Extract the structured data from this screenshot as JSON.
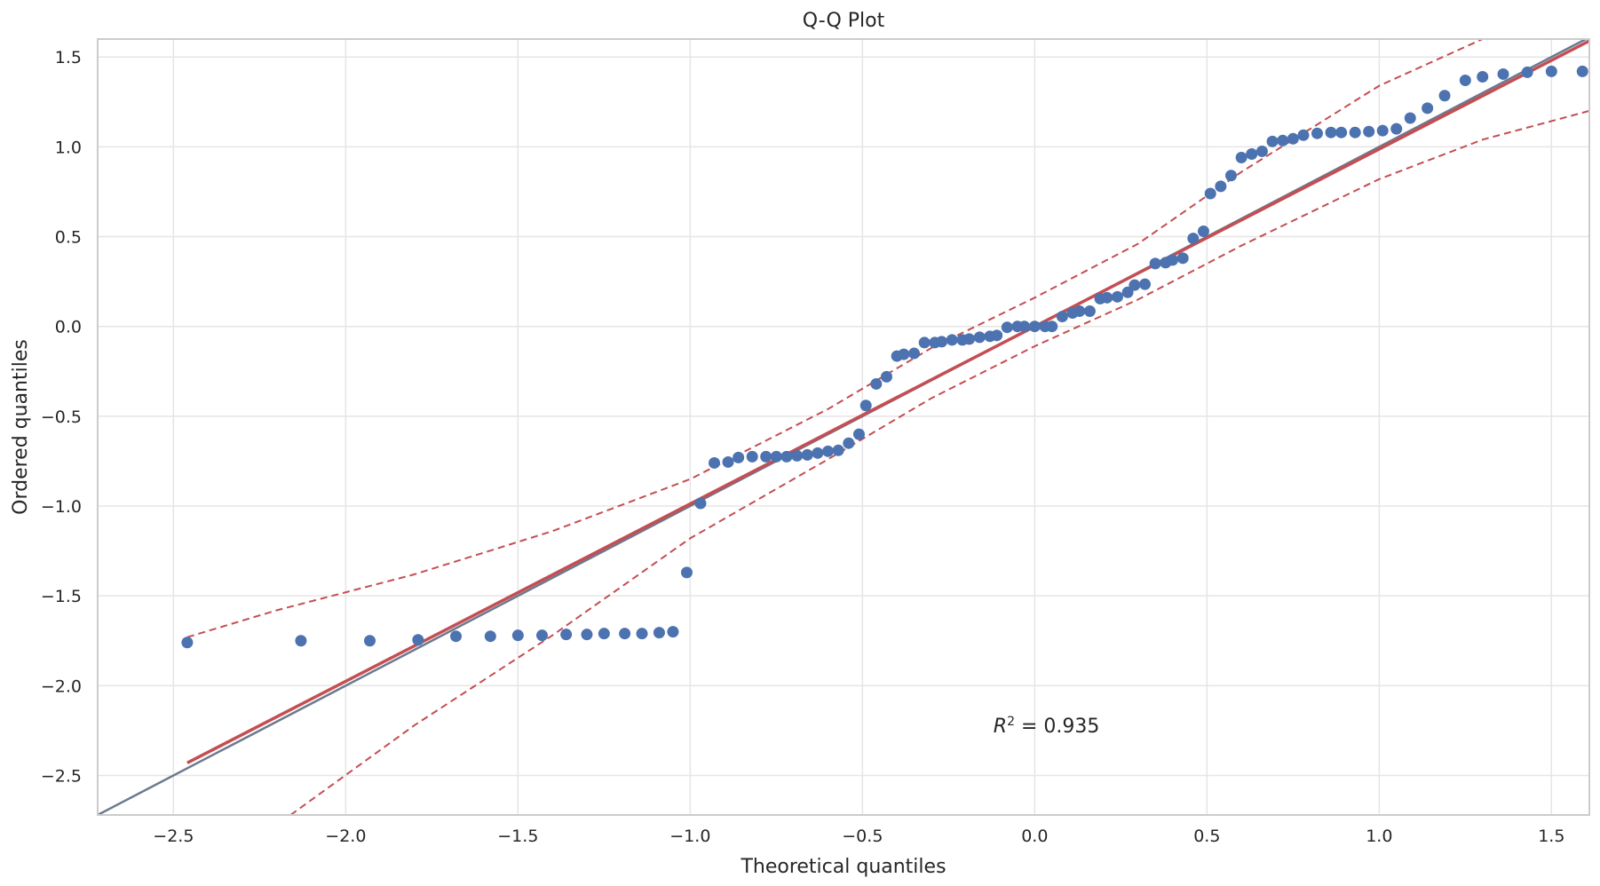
{
  "chart_data": {
    "type": "scatter",
    "title": "Q-Q Plot",
    "xlabel": "Theoretical quantiles",
    "ylabel": "Ordered quantiles",
    "xlim": [
      -2.72,
      1.61
    ],
    "ylim": [
      -2.72,
      1.6
    ],
    "xticks": [
      -2.5,
      -2.0,
      -1.5,
      -1.0,
      -0.5,
      0.0,
      0.5,
      1.0,
      1.5
    ],
    "xtick_labels": [
      "−2.5",
      "−2.0",
      "−1.5",
      "−1.0",
      "−0.5",
      "0.0",
      "0.5",
      "1.0",
      "1.5"
    ],
    "yticks": [
      1.5,
      1.0,
      0.5,
      0.0,
      -0.5,
      -1.0,
      -1.5,
      -2.0,
      -2.5
    ],
    "ytick_labels": [
      "1.5",
      "1.0",
      "0.5",
      "0.0",
      "−0.5",
      "−1.0",
      "−1.5",
      "−2.0",
      "−2.5"
    ],
    "grid": true,
    "annotation": {
      "prefix": "R",
      "superscript": "2",
      "suffix": " = 0.935",
      "x": -0.12,
      "y": -2.26
    },
    "points": [
      [
        -2.46,
        -1.76
      ],
      [
        -2.13,
        -1.75
      ],
      [
        -1.93,
        -1.75
      ],
      [
        -1.79,
        -1.745
      ],
      [
        -1.68,
        -1.725
      ],
      [
        -1.58,
        -1.725
      ],
      [
        -1.5,
        -1.72
      ],
      [
        -1.43,
        -1.72
      ],
      [
        -1.36,
        -1.715
      ],
      [
        -1.3,
        -1.715
      ],
      [
        -1.25,
        -1.71
      ],
      [
        -1.19,
        -1.71
      ],
      [
        -1.14,
        -1.71
      ],
      [
        -1.09,
        -1.705
      ],
      [
        -1.05,
        -1.7
      ],
      [
        -1.01,
        -1.37
      ],
      [
        -0.97,
        -0.985
      ],
      [
        -0.93,
        -0.76
      ],
      [
        -0.89,
        -0.755
      ],
      [
        -0.86,
        -0.73
      ],
      [
        -0.82,
        -0.725
      ],
      [
        -0.78,
        -0.725
      ],
      [
        -0.75,
        -0.725
      ],
      [
        -0.72,
        -0.725
      ],
      [
        -0.69,
        -0.72
      ],
      [
        -0.66,
        -0.715
      ],
      [
        -0.63,
        -0.705
      ],
      [
        -0.6,
        -0.695
      ],
      [
        -0.57,
        -0.69
      ],
      [
        -0.54,
        -0.65
      ],
      [
        -0.51,
        -0.6
      ],
      [
        -0.49,
        -0.44
      ],
      [
        -0.46,
        -0.32
      ],
      [
        -0.43,
        -0.28
      ],
      [
        -0.4,
        -0.165
      ],
      [
        -0.38,
        -0.155
      ],
      [
        -0.35,
        -0.15
      ],
      [
        -0.32,
        -0.09
      ],
      [
        -0.29,
        -0.09
      ],
      [
        -0.27,
        -0.085
      ],
      [
        -0.24,
        -0.075
      ],
      [
        -0.21,
        -0.075
      ],
      [
        -0.19,
        -0.07
      ],
      [
        -0.16,
        -0.06
      ],
      [
        -0.13,
        -0.055
      ],
      [
        -0.11,
        -0.05
      ],
      [
        -0.08,
        -0.005
      ],
      [
        -0.05,
        0.0
      ],
      [
        -0.03,
        0.0
      ],
      [
        0.0,
        0.0
      ],
      [
        0.03,
        0.0
      ],
      [
        0.05,
        0.0
      ],
      [
        0.08,
        0.055
      ],
      [
        0.11,
        0.075
      ],
      [
        0.13,
        0.085
      ],
      [
        0.16,
        0.085
      ],
      [
        0.19,
        0.155
      ],
      [
        0.21,
        0.16
      ],
      [
        0.24,
        0.165
      ],
      [
        0.27,
        0.19
      ],
      [
        0.29,
        0.23
      ],
      [
        0.32,
        0.235
      ],
      [
        0.35,
        0.35
      ],
      [
        0.38,
        0.355
      ],
      [
        0.4,
        0.37
      ],
      [
        0.43,
        0.38
      ],
      [
        0.46,
        0.49
      ],
      [
        0.49,
        0.53
      ],
      [
        0.51,
        0.74
      ],
      [
        0.54,
        0.78
      ],
      [
        0.57,
        0.84
      ],
      [
        0.6,
        0.94
      ],
      [
        0.63,
        0.96
      ],
      [
        0.66,
        0.975
      ],
      [
        0.69,
        1.03
      ],
      [
        0.72,
        1.035
      ],
      [
        0.75,
        1.045
      ],
      [
        0.78,
        1.065
      ],
      [
        0.82,
        1.075
      ],
      [
        0.86,
        1.08
      ],
      [
        0.89,
        1.08
      ],
      [
        0.93,
        1.08
      ],
      [
        0.97,
        1.085
      ],
      [
        1.01,
        1.09
      ],
      [
        1.05,
        1.1
      ],
      [
        1.09,
        1.16
      ],
      [
        1.14,
        1.215
      ],
      [
        1.19,
        1.285
      ],
      [
        1.25,
        1.37
      ],
      [
        1.3,
        1.39
      ],
      [
        1.36,
        1.405
      ],
      [
        1.43,
        1.415
      ],
      [
        1.5,
        1.42
      ],
      [
        1.59,
        1.42
      ]
    ],
    "fit_line": {
      "x": [
        -2.46,
        1.61
      ],
      "y": [
        -2.43,
        1.59
      ],
      "color": "#c44e52"
    },
    "reference_line": {
      "slope": 1,
      "intercept": 0,
      "color": "#6b7a8f"
    },
    "confidence_band": {
      "color": "#c44e52",
      "upper": [
        [
          -2.46,
          -1.73
        ],
        [
          -2.2,
          -1.58
        ],
        [
          -1.8,
          -1.38
        ],
        [
          -1.4,
          -1.14
        ],
        [
          -1.0,
          -0.85
        ],
        [
          -0.6,
          -0.46
        ],
        [
          -0.3,
          -0.12
        ],
        [
          0.0,
          0.16
        ],
        [
          0.3,
          0.46
        ],
        [
          0.6,
          0.86
        ],
        [
          1.0,
          1.34
        ],
        [
          1.3,
          1.6
        ]
      ],
      "lower": [
        [
          -2.16,
          -2.72
        ],
        [
          -1.8,
          -2.22
        ],
        [
          -1.4,
          -1.72
        ],
        [
          -1.0,
          -1.18
        ],
        [
          -0.6,
          -0.74
        ],
        [
          -0.3,
          -0.4
        ],
        [
          0.0,
          -0.11
        ],
        [
          0.3,
          0.15
        ],
        [
          0.6,
          0.45
        ],
        [
          1.0,
          0.82
        ],
        [
          1.3,
          1.04
        ],
        [
          1.61,
          1.2
        ]
      ]
    },
    "marker_color": "#4c72b0"
  }
}
